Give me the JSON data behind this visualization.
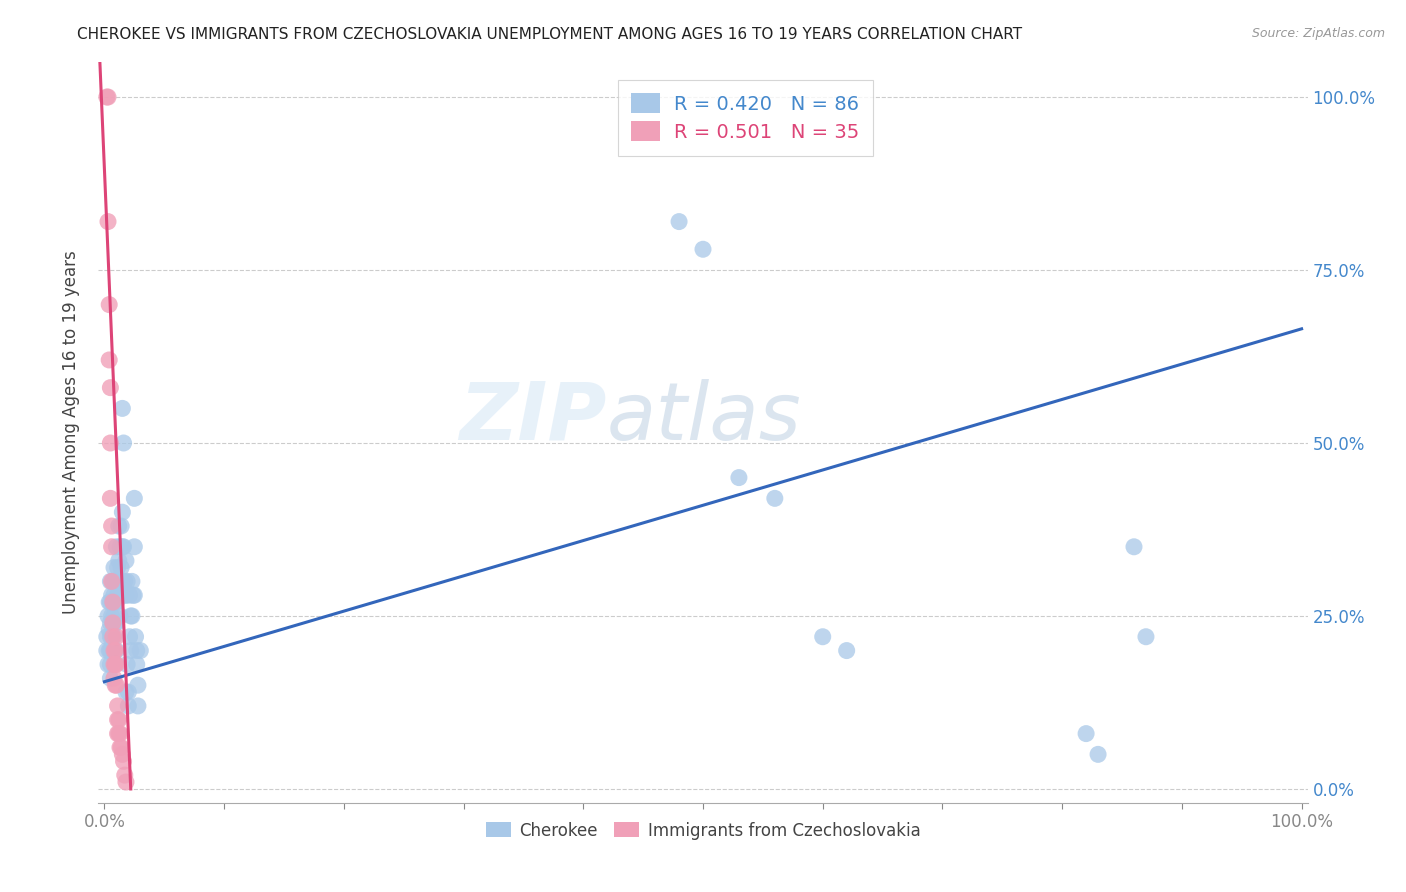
{
  "title": "CHEROKEE VS IMMIGRANTS FROM CZECHOSLOVAKIA UNEMPLOYMENT AMONG AGES 16 TO 19 YEARS CORRELATION CHART",
  "source": "Source: ZipAtlas.com",
  "ylabel": "Unemployment Among Ages 16 to 19 years",
  "legend_blue_label": "Cherokee",
  "legend_pink_label": "Immigrants from Czechoslovakia",
  "legend_blue_R": "R = 0.420",
  "legend_blue_N": "N = 86",
  "legend_pink_R": "R = 0.501",
  "legend_pink_N": "N = 35",
  "watermark": "ZIPatlas",
  "blue_color": "#a8c8e8",
  "pink_color": "#f0a0b8",
  "blue_line_color": "#3366bb",
  "pink_line_color": "#dd4477",
  "legend_R_blue_color": "#4488cc",
  "legend_R_pink_color": "#dd4477",
  "blue_scatter": [
    [
      0.002,
      0.22
    ],
    [
      0.002,
      0.2
    ],
    [
      0.003,
      0.25
    ],
    [
      0.003,
      0.18
    ],
    [
      0.004,
      0.27
    ],
    [
      0.004,
      0.23
    ],
    [
      0.004,
      0.2
    ],
    [
      0.005,
      0.3
    ],
    [
      0.005,
      0.27
    ],
    [
      0.005,
      0.24
    ],
    [
      0.005,
      0.22
    ],
    [
      0.005,
      0.2
    ],
    [
      0.005,
      0.18
    ],
    [
      0.005,
      0.16
    ],
    [
      0.006,
      0.28
    ],
    [
      0.006,
      0.25
    ],
    [
      0.006,
      0.22
    ],
    [
      0.006,
      0.2
    ],
    [
      0.007,
      0.3
    ],
    [
      0.007,
      0.27
    ],
    [
      0.007,
      0.24
    ],
    [
      0.007,
      0.22
    ],
    [
      0.007,
      0.2
    ],
    [
      0.008,
      0.32
    ],
    [
      0.008,
      0.28
    ],
    [
      0.008,
      0.25
    ],
    [
      0.008,
      0.22
    ],
    [
      0.009,
      0.3
    ],
    [
      0.009,
      0.27
    ],
    [
      0.009,
      0.24
    ],
    [
      0.01,
      0.35
    ],
    [
      0.01,
      0.3
    ],
    [
      0.01,
      0.27
    ],
    [
      0.01,
      0.24
    ],
    [
      0.01,
      0.2
    ],
    [
      0.011,
      0.32
    ],
    [
      0.011,
      0.28
    ],
    [
      0.012,
      0.38
    ],
    [
      0.012,
      0.33
    ],
    [
      0.012,
      0.28
    ],
    [
      0.013,
      0.35
    ],
    [
      0.013,
      0.3
    ],
    [
      0.013,
      0.25
    ],
    [
      0.014,
      0.38
    ],
    [
      0.014,
      0.32
    ],
    [
      0.015,
      0.55
    ],
    [
      0.015,
      0.4
    ],
    [
      0.015,
      0.35
    ],
    [
      0.015,
      0.3
    ],
    [
      0.016,
      0.5
    ],
    [
      0.016,
      0.35
    ],
    [
      0.017,
      0.3
    ],
    [
      0.017,
      0.28
    ],
    [
      0.018,
      0.33
    ],
    [
      0.018,
      0.28
    ],
    [
      0.018,
      0.14
    ],
    [
      0.019,
      0.3
    ],
    [
      0.019,
      0.18
    ],
    [
      0.02,
      0.14
    ],
    [
      0.02,
      0.12
    ],
    [
      0.021,
      0.28
    ],
    [
      0.021,
      0.22
    ],
    [
      0.022,
      0.25
    ],
    [
      0.022,
      0.2
    ],
    [
      0.023,
      0.3
    ],
    [
      0.023,
      0.25
    ],
    [
      0.024,
      0.28
    ],
    [
      0.025,
      0.42
    ],
    [
      0.025,
      0.35
    ],
    [
      0.025,
      0.28
    ],
    [
      0.026,
      0.22
    ],
    [
      0.027,
      0.2
    ],
    [
      0.027,
      0.18
    ],
    [
      0.028,
      0.15
    ],
    [
      0.028,
      0.12
    ],
    [
      0.03,
      0.2
    ],
    [
      0.48,
      0.82
    ],
    [
      0.5,
      0.78
    ],
    [
      0.53,
      0.45
    ],
    [
      0.56,
      0.42
    ],
    [
      0.6,
      0.22
    ],
    [
      0.62,
      0.2
    ],
    [
      0.82,
      0.08
    ],
    [
      0.83,
      0.05
    ],
    [
      0.86,
      0.35
    ],
    [
      0.87,
      0.22
    ]
  ],
  "pink_scatter": [
    [
      0.002,
      1.0
    ],
    [
      0.003,
      1.0
    ],
    [
      0.003,
      0.82
    ],
    [
      0.004,
      0.7
    ],
    [
      0.004,
      0.62
    ],
    [
      0.005,
      0.58
    ],
    [
      0.005,
      0.5
    ],
    [
      0.005,
      0.42
    ],
    [
      0.006,
      0.38
    ],
    [
      0.006,
      0.35
    ],
    [
      0.006,
      0.3
    ],
    [
      0.007,
      0.27
    ],
    [
      0.007,
      0.24
    ],
    [
      0.007,
      0.22
    ],
    [
      0.008,
      0.2
    ],
    [
      0.008,
      0.18
    ],
    [
      0.008,
      0.16
    ],
    [
      0.009,
      0.2
    ],
    [
      0.009,
      0.18
    ],
    [
      0.009,
      0.15
    ],
    [
      0.01,
      0.22
    ],
    [
      0.01,
      0.18
    ],
    [
      0.01,
      0.15
    ],
    [
      0.011,
      0.12
    ],
    [
      0.011,
      0.1
    ],
    [
      0.011,
      0.08
    ],
    [
      0.012,
      0.1
    ],
    [
      0.012,
      0.08
    ],
    [
      0.013,
      0.08
    ],
    [
      0.013,
      0.06
    ],
    [
      0.014,
      0.06
    ],
    [
      0.015,
      0.05
    ],
    [
      0.016,
      0.04
    ],
    [
      0.017,
      0.02
    ],
    [
      0.018,
      0.01
    ]
  ],
  "blue_line": [
    [
      0.0,
      0.155
    ],
    [
      1.0,
      0.665
    ]
  ],
  "pink_line": [
    [
      -0.005,
      1.1
    ],
    [
      0.022,
      0.0
    ]
  ],
  "xlim": [
    -0.005,
    1.005
  ],
  "ylim": [
    -0.02,
    1.05
  ],
  "figsize": [
    14.06,
    8.92
  ],
  "dpi": 100
}
